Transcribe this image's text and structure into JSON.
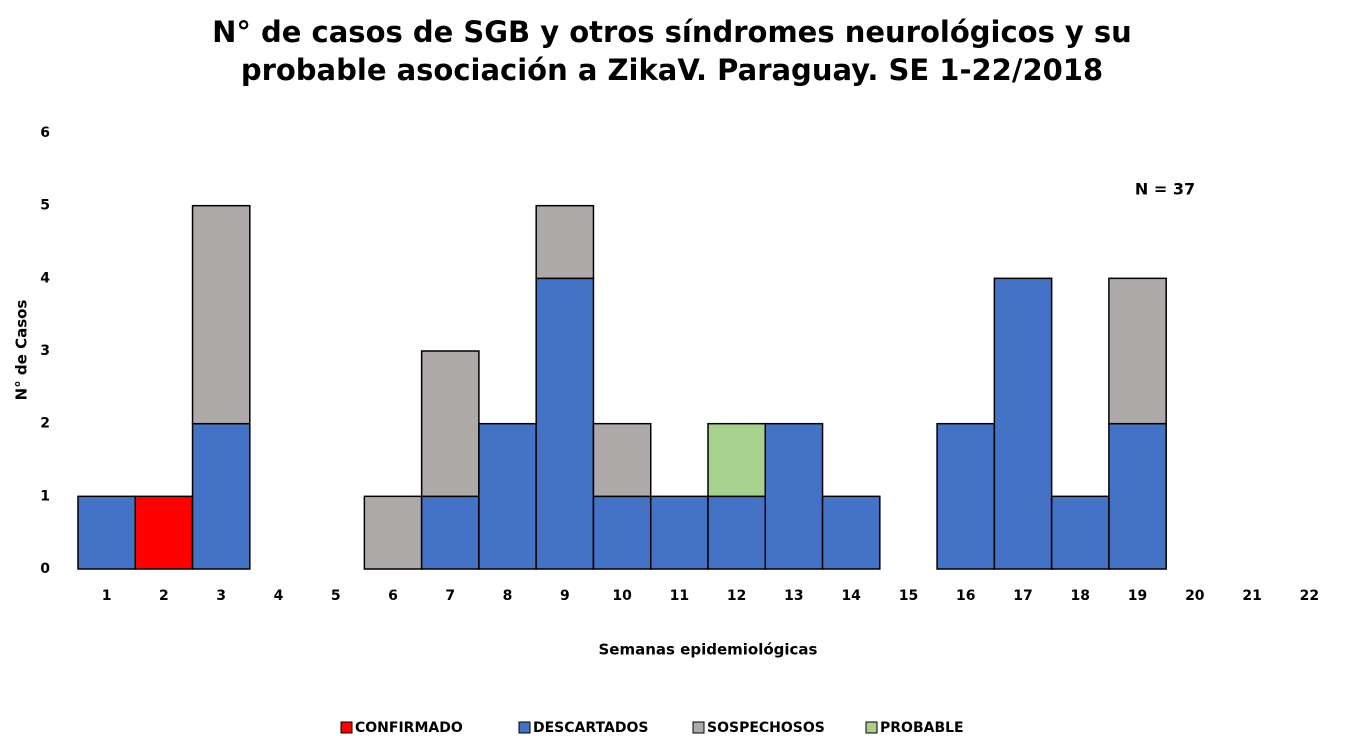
{
  "chart_data": {
    "type": "stacked_bar",
    "title": [
      "N° de casos de SGB y otros síndromes neurológicos y su",
      "probable asociación a ZikaV. Paraguay. SE 1-22/2018"
    ],
    "x_label": "Semanas epidemiológicas",
    "y_label": "N° de Casos",
    "annotation": "N = 37",
    "categories": [
      "1",
      "2",
      "3",
      "4",
      "5",
      "6",
      "7",
      "8",
      "9",
      "10",
      "11",
      "12",
      "13",
      "14",
      "15",
      "16",
      "17",
      "18",
      "19",
      "20",
      "21",
      "22"
    ],
    "series": [
      {
        "name": "CONFIRMADO",
        "color": "#ff0000",
        "values": [
          0,
          1,
          0,
          0,
          0,
          0,
          0,
          0,
          0,
          0,
          0,
          0,
          0,
          0,
          0,
          0,
          0,
          0,
          0,
          0,
          0,
          0
        ]
      },
      {
        "name": "DESCARTADOS",
        "color": "#4472c4",
        "values": [
          1,
          0,
          2,
          0,
          0,
          0,
          1,
          2,
          4,
          1,
          1,
          1,
          2,
          1,
          0,
          2,
          4,
          1,
          2,
          0,
          0,
          0
        ]
      },
      {
        "name": "SOSPECHOSOS",
        "color": "#aeaaaa",
        "values": [
          0,
          0,
          3,
          0,
          0,
          1,
          2,
          0,
          1,
          1,
          0,
          0,
          0,
          0,
          0,
          0,
          0,
          0,
          2,
          0,
          0,
          0
        ]
      },
      {
        "name": "PROBABLE",
        "color": "#a9d18e",
        "values": [
          0,
          0,
          0,
          0,
          0,
          0,
          0,
          0,
          0,
          0,
          0,
          1,
          0,
          0,
          0,
          0,
          0,
          0,
          0,
          0,
          0,
          0
        ]
      }
    ],
    "ylim": [
      0,
      6
    ],
    "yticks": [
      0,
      1,
      2,
      3,
      4,
      5,
      6
    ],
    "legend": "bottom"
  }
}
